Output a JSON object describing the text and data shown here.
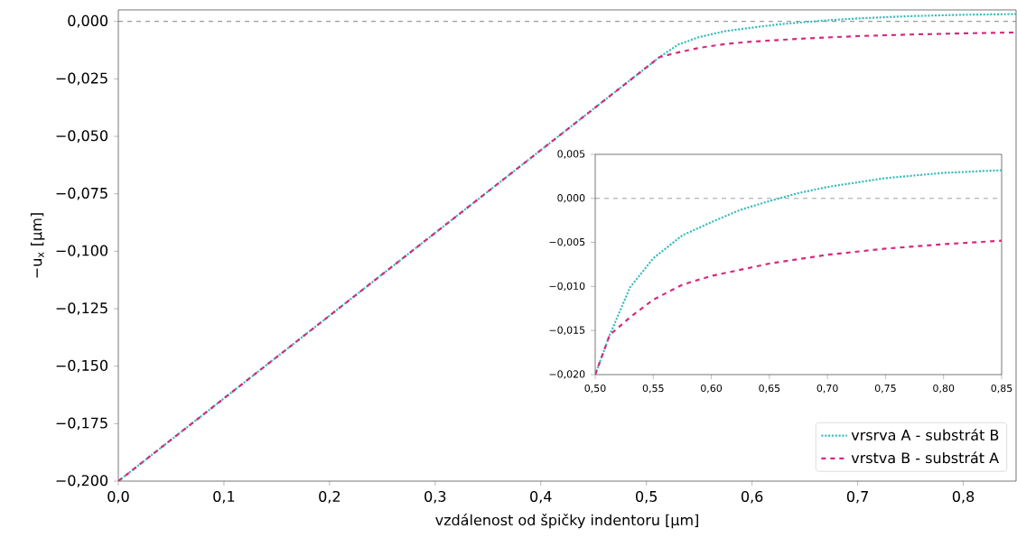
{
  "chart_data": [
    {
      "type": "line",
      "xlabel": "vzdálenost od špičky indentoru [µm]",
      "ylabel": "−u$_{x}$ [µm]",
      "xlim": [
        0,
        0.85
      ],
      "ylim": [
        -0.2,
        0.005
      ],
      "xticks": [
        {
          "value": 0,
          "label": "0,0"
        },
        {
          "value": 0.1,
          "label": "0,1"
        },
        {
          "value": 0.2,
          "label": "0,2"
        },
        {
          "value": 0.3,
          "label": "0,3"
        },
        {
          "value": 0.4,
          "label": "0,4"
        },
        {
          "value": 0.5,
          "label": "0,5"
        },
        {
          "value": 0.6,
          "label": "0,6"
        },
        {
          "value": 0.7,
          "label": "0,7"
        },
        {
          "value": 0.8,
          "label": "0,8"
        }
      ],
      "yticks": [
        {
          "value": -0.2,
          "label": "−0,200"
        },
        {
          "value": -0.175,
          "label": "−0,175"
        },
        {
          "value": -0.15,
          "label": "−0,150"
        },
        {
          "value": -0.125,
          "label": "−0,125"
        },
        {
          "value": -0.1,
          "label": "−0,100"
        },
        {
          "value": -0.075,
          "label": "−0,075"
        },
        {
          "value": -0.05,
          "label": "−0,050"
        },
        {
          "value": -0.025,
          "label": "−0,025"
        },
        {
          "value": 0,
          "label": "0,000"
        }
      ],
      "ref_lines": [
        {
          "axis": "y",
          "value": 0,
          "color": "#808080",
          "line_style": "dashed"
        }
      ],
      "legend": "bottom right",
      "grid": false,
      "series": [
        {
          "name": "vrsrva A - substrát B",
          "color": "#3cbdbd",
          "line_style": "dotted",
          "x": [
            0,
            0.5,
            0.5125,
            0.53,
            0.55,
            0.575,
            0.6,
            0.625,
            0.65,
            0.675,
            0.7,
            0.75,
            0.8,
            0.85
          ],
          "values": [
            -0.2,
            -0.02,
            -0.0155,
            -0.0101,
            -0.0068,
            -0.0042,
            -0.0027,
            -0.0013,
            -0.0003,
            0.0006,
            0.0013,
            0.0023,
            0.0029,
            0.0032
          ]
        },
        {
          "name": "vrstva B - substrát A",
          "color": "#d6297f",
          "line_style": "dashed",
          "x": [
            0,
            0.5,
            0.5125,
            0.53,
            0.55,
            0.575,
            0.6,
            0.65,
            0.7,
            0.75,
            0.8,
            0.85
          ],
          "values": [
            -0.2,
            -0.02,
            -0.0155,
            -0.0135,
            -0.0115,
            -0.0098,
            -0.0088,
            -0.0074,
            -0.0064,
            -0.0057,
            -0.0052,
            -0.0048
          ]
        }
      ]
    },
    {
      "type": "line",
      "xlim": [
        0.5,
        0.85
      ],
      "ylim": [
        -0.02,
        0.005
      ],
      "xticks": [
        {
          "value": 0.5,
          "label": "0,50"
        },
        {
          "value": 0.55,
          "label": "0,55"
        },
        {
          "value": 0.6,
          "label": "0,60"
        },
        {
          "value": 0.65,
          "label": "0,65"
        },
        {
          "value": 0.7,
          "label": "0,70"
        },
        {
          "value": 0.75,
          "label": "0,75"
        },
        {
          "value": 0.8,
          "label": "0,80"
        },
        {
          "value": 0.85,
          "label": "0,85"
        }
      ],
      "yticks": [
        {
          "value": -0.02,
          "label": "−0,020"
        },
        {
          "value": -0.015,
          "label": "−0,015"
        },
        {
          "value": -0.01,
          "label": "−0,010"
        },
        {
          "value": -0.005,
          "label": "−0,005"
        },
        {
          "value": 0,
          "label": "0,000"
        },
        {
          "value": 0.005,
          "label": "0,005"
        }
      ],
      "ref_lines": [
        {
          "axis": "y",
          "value": 0,
          "color": "#808080",
          "line_style": "dashed"
        }
      ],
      "grid": false,
      "series": [
        {
          "color": "#3cbdbd",
          "line_style": "dotted",
          "x": [
            0.5,
            0.5125,
            0.53,
            0.55,
            0.575,
            0.6,
            0.625,
            0.65,
            0.675,
            0.7,
            0.75,
            0.8,
            0.85
          ],
          "values": [
            -0.02,
            -0.0155,
            -0.0101,
            -0.0068,
            -0.0042,
            -0.0027,
            -0.0013,
            -0.0003,
            0.0006,
            0.0013,
            0.0023,
            0.0029,
            0.0032
          ]
        },
        {
          "color": "#d6297f",
          "line_style": "dashed",
          "x": [
            0.5,
            0.5125,
            0.53,
            0.55,
            0.575,
            0.6,
            0.65,
            0.7,
            0.75,
            0.8,
            0.85
          ],
          "values": [
            -0.02,
            -0.0155,
            -0.0135,
            -0.0115,
            -0.0098,
            -0.0088,
            -0.0074,
            -0.0064,
            -0.0057,
            -0.0052,
            -0.0048
          ]
        }
      ]
    }
  ]
}
